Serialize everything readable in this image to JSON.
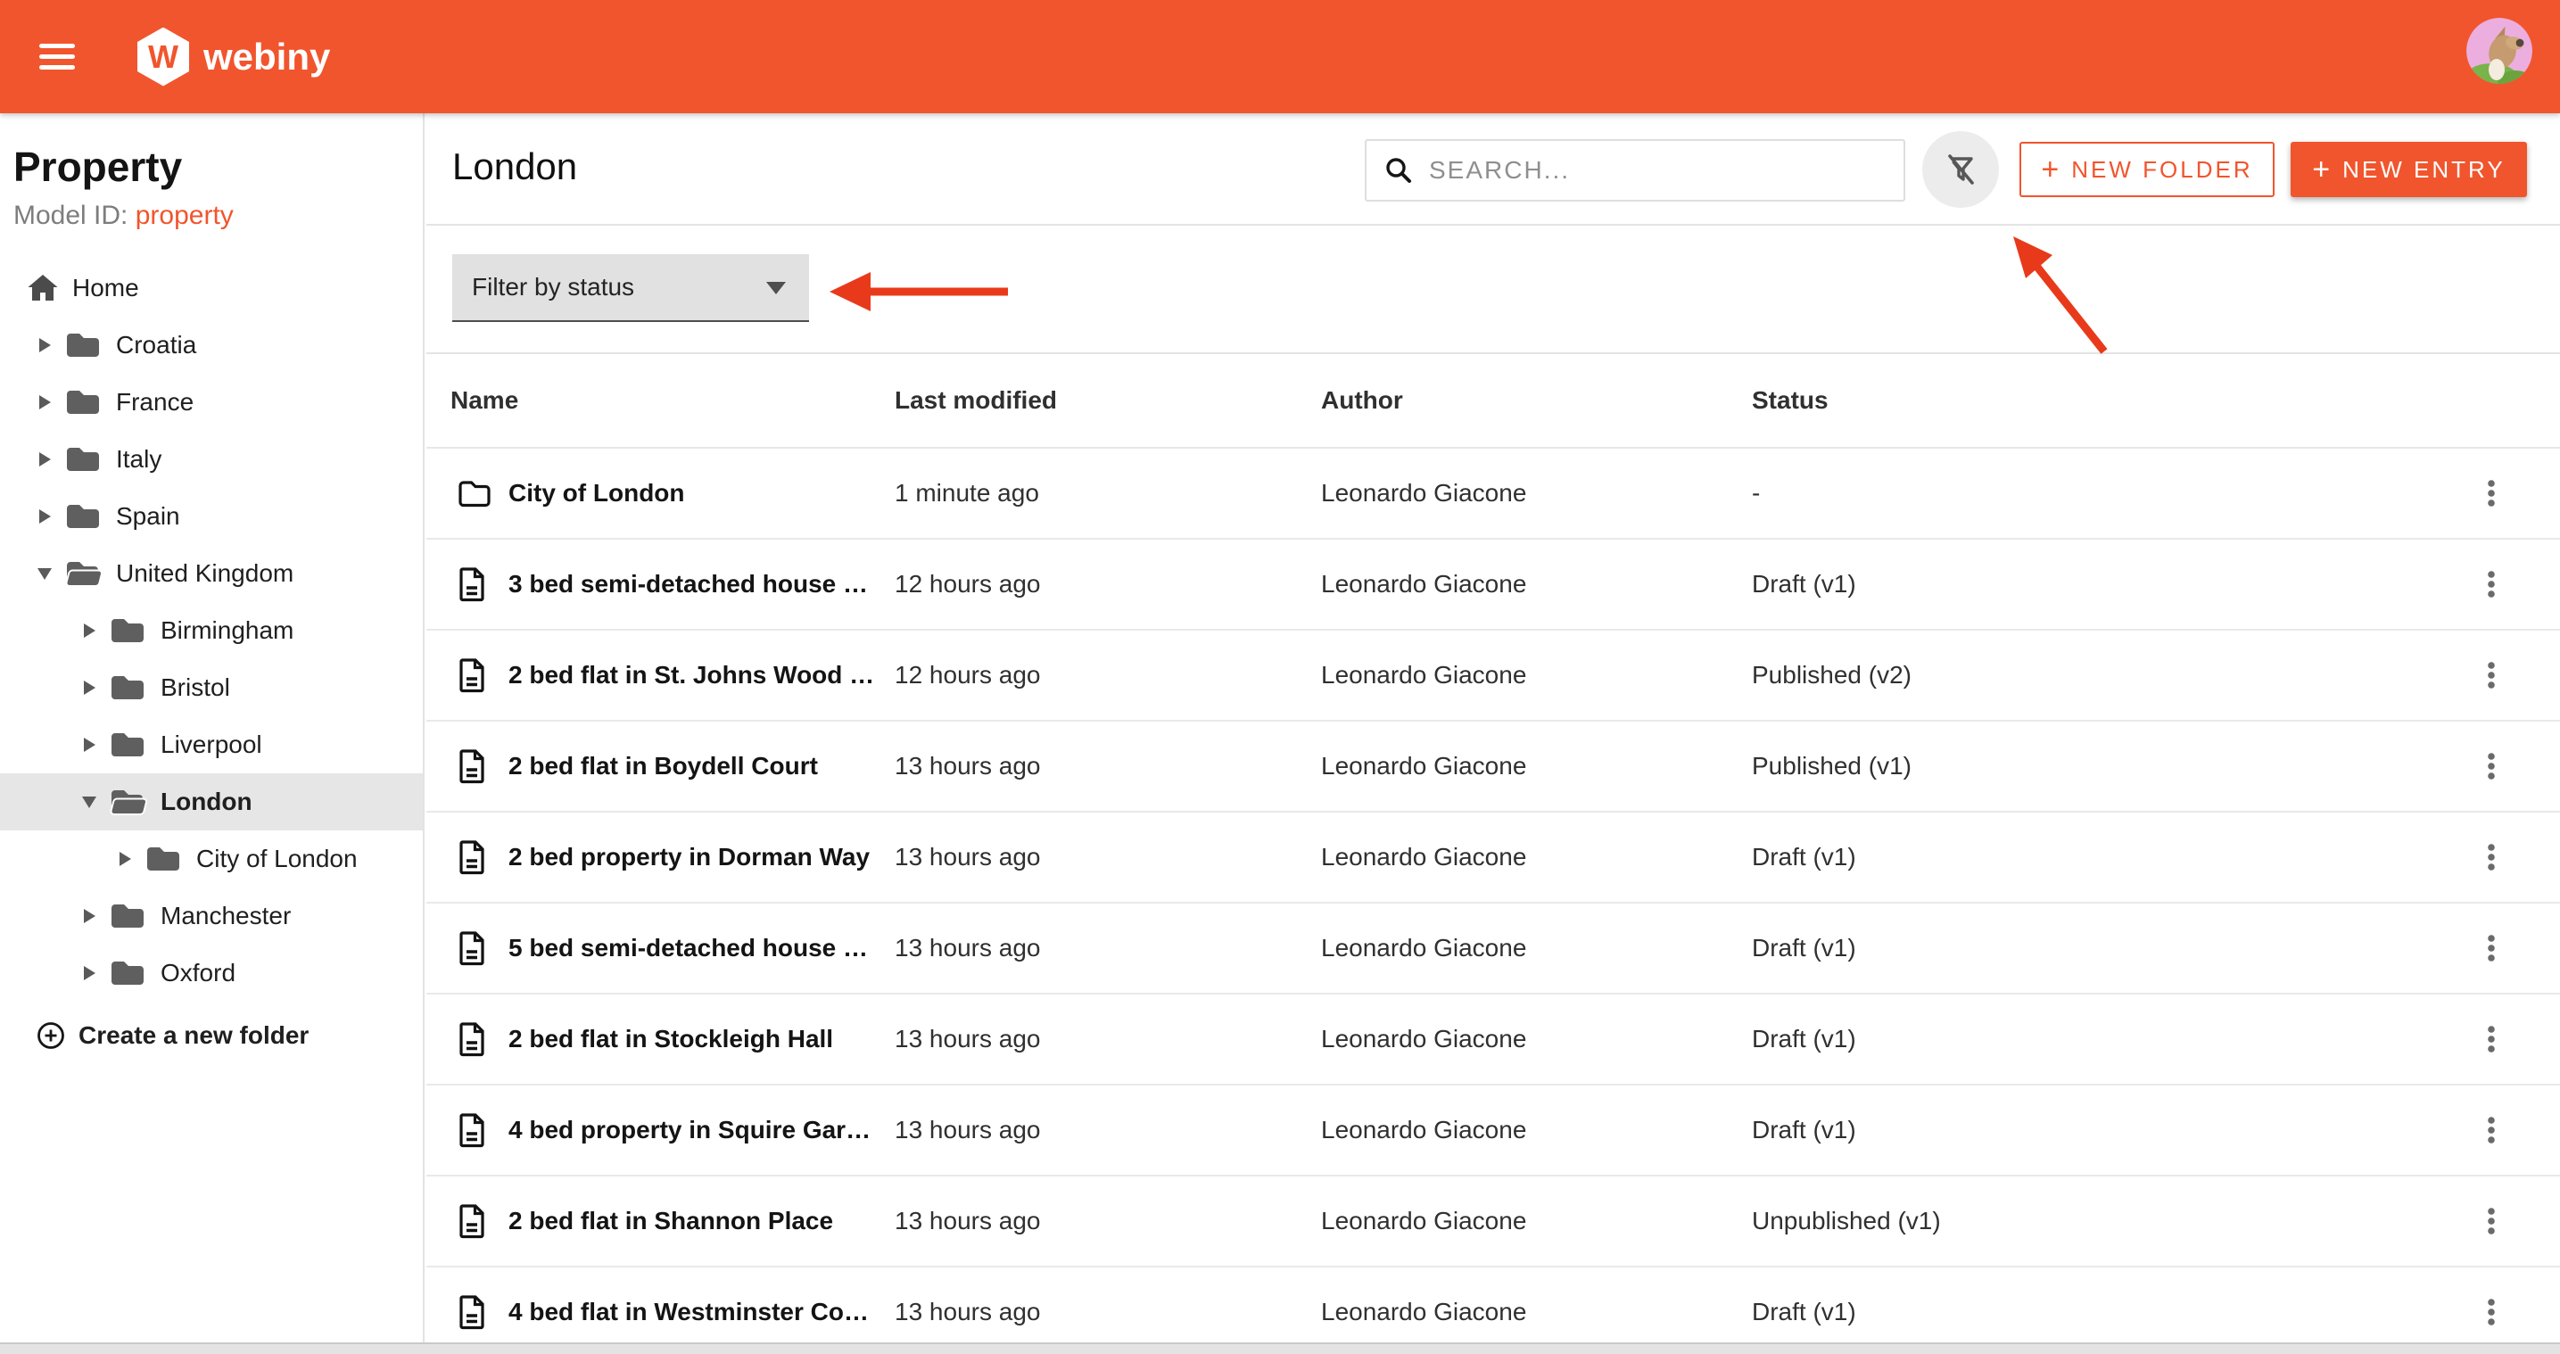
{
  "topbar": {
    "brand": "webiny",
    "logo_letter": "W"
  },
  "sidebar": {
    "title": "Property",
    "model_id_label": "Model ID:",
    "model_id_value": "property",
    "home_label": "Home",
    "create_folder_label": "Create a new folder",
    "tree": [
      {
        "label": "Croatia",
        "level": 1,
        "state": "collapsed"
      },
      {
        "label": "France",
        "level": 1,
        "state": "collapsed"
      },
      {
        "label": "Italy",
        "level": 1,
        "state": "collapsed"
      },
      {
        "label": "Spain",
        "level": 1,
        "state": "collapsed"
      },
      {
        "label": "United Kingdom",
        "level": 1,
        "state": "expanded"
      },
      {
        "label": "Birmingham",
        "level": 2,
        "state": "collapsed"
      },
      {
        "label": "Bristol",
        "level": 2,
        "state": "collapsed"
      },
      {
        "label": "Liverpool",
        "level": 2,
        "state": "collapsed"
      },
      {
        "label": "London",
        "level": 2,
        "state": "expanded",
        "selected": true
      },
      {
        "label": "City of London",
        "level": 3,
        "state": "collapsed"
      },
      {
        "label": "Manchester",
        "level": 2,
        "state": "collapsed"
      },
      {
        "label": "Oxford",
        "level": 2,
        "state": "collapsed"
      }
    ]
  },
  "header": {
    "title": "London",
    "search_placeholder": "SEARCH...",
    "new_folder_label": "NEW FOLDER",
    "new_entry_label": "NEW ENTRY",
    "plus_sign": "+"
  },
  "filter": {
    "label": "Filter by status"
  },
  "table": {
    "columns": [
      "Name",
      "Last modified",
      "Author",
      "Status"
    ],
    "rows": [
      {
        "name": "City of London",
        "icon": "folder",
        "modified": "1 minute ago",
        "author": "Leonardo Giacone",
        "status": "-"
      },
      {
        "name": "3 bed semi-detached house …",
        "icon": "document",
        "modified": "12 hours ago",
        "author": "Leonardo Giacone",
        "status": "Draft (v1)"
      },
      {
        "name": "2 bed flat in St. Johns Wood …",
        "icon": "document",
        "modified": "12 hours ago",
        "author": "Leonardo Giacone",
        "status": "Published (v2)"
      },
      {
        "name": "2 bed flat in Boydell Court",
        "icon": "document",
        "modified": "13 hours ago",
        "author": "Leonardo Giacone",
        "status": "Published (v1)"
      },
      {
        "name": "2 bed property in Dorman Way",
        "icon": "document",
        "modified": "13 hours ago",
        "author": "Leonardo Giacone",
        "status": "Draft (v1)"
      },
      {
        "name": "5 bed semi-detached house …",
        "icon": "document",
        "modified": "13 hours ago",
        "author": "Leonardo Giacone",
        "status": "Draft (v1)"
      },
      {
        "name": "2 bed flat in Stockleigh Hall",
        "icon": "document",
        "modified": "13 hours ago",
        "author": "Leonardo Giacone",
        "status": "Draft (v1)"
      },
      {
        "name": "4 bed property in Squire Gar…",
        "icon": "document",
        "modified": "13 hours ago",
        "author": "Leonardo Giacone",
        "status": "Draft (v1)"
      },
      {
        "name": "2 bed flat in Shannon Place",
        "icon": "document",
        "modified": "13 hours ago",
        "author": "Leonardo Giacone",
        "status": "Unpublished (v1)"
      },
      {
        "name": "4 bed flat in Westminster Co…",
        "icon": "document",
        "modified": "13 hours ago",
        "author": "Leonardo Giacone",
        "status": "Draft (v1)"
      }
    ]
  },
  "colors": {
    "accent": "#f1552d",
    "arrow": "#e83a1b",
    "selected_row": "#e6e6e6",
    "filter_chip_bg": "#e1e1e1"
  }
}
